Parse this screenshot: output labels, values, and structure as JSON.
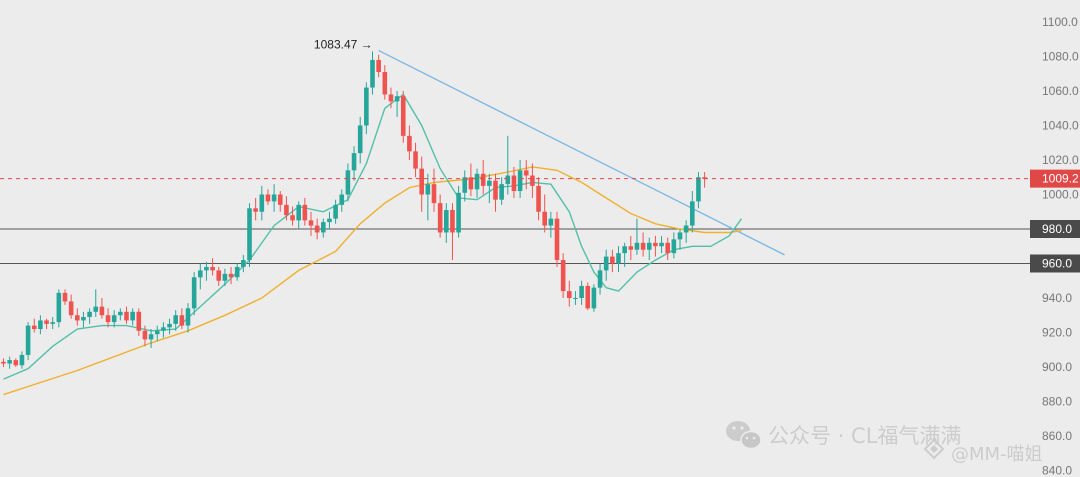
{
  "chart_data": {
    "type": "candlestick",
    "title": "",
    "xlabel": "",
    "ylabel": "",
    "ylim": [
      840,
      1100
    ],
    "y_ticks": [
      {
        "value": 1100,
        "label": "1100.0"
      },
      {
        "value": 1080,
        "label": "1080.0"
      },
      {
        "value": 1060,
        "label": "1060.0"
      },
      {
        "value": 1040,
        "label": "1040.0"
      },
      {
        "value": 1020,
        "label": "1020.0"
      },
      {
        "value": 1000,
        "label": "1000.0"
      },
      {
        "value": 980,
        "label": "980.0"
      },
      {
        "value": 960,
        "label": "960.0"
      },
      {
        "value": 940,
        "label": "940.0"
      },
      {
        "value": 920,
        "label": "920.0"
      },
      {
        "value": 900,
        "label": "900.0"
      },
      {
        "value": 880,
        "label": "880.0"
      },
      {
        "value": 860,
        "label": "860.0"
      },
      {
        "value": 840,
        "label": "840.0"
      }
    ],
    "grid": false,
    "colors": {
      "up": "#26a69a",
      "down": "#ef5350",
      "ma_fast": "#52c0a8",
      "ma_slow": "#efb12f",
      "trendline": "#78b6e4",
      "price_line": "#e04848",
      "level_line": "#555555"
    },
    "candles": [
      [
        903,
        905,
        900,
        902
      ],
      [
        902,
        906,
        899,
        904
      ],
      [
        904,
        905,
        900,
        901
      ],
      [
        901,
        909,
        899,
        907
      ],
      [
        907,
        926,
        904,
        924
      ],
      [
        924,
        928,
        920,
        922
      ],
      [
        922,
        930,
        919,
        927
      ],
      [
        927,
        928,
        922,
        925
      ],
      [
        925,
        929,
        922,
        926
      ],
      [
        926,
        945,
        923,
        943
      ],
      [
        943,
        945,
        936,
        938
      ],
      [
        938,
        942,
        928,
        930
      ],
      [
        930,
        934,
        924,
        927
      ],
      [
        927,
        932,
        923,
        929
      ],
      [
        929,
        934,
        925,
        932
      ],
      [
        932,
        945,
        929,
        935
      ],
      [
        935,
        940,
        928,
        930
      ],
      [
        930,
        934,
        923,
        926
      ],
      [
        926,
        933,
        923,
        930
      ],
      [
        930,
        934,
        927,
        932
      ],
      [
        932,
        935,
        925,
        927
      ],
      [
        927,
        934,
        924,
        932
      ],
      [
        932,
        934,
        918,
        921
      ],
      [
        921,
        924,
        912,
        916
      ],
      [
        916,
        922,
        911,
        919
      ],
      [
        919,
        924,
        915,
        921
      ],
      [
        921,
        926,
        917,
        923
      ],
      [
        923,
        928,
        919,
        925
      ],
      [
        925,
        933,
        921,
        930
      ],
      [
        930,
        934,
        922,
        924
      ],
      [
        924,
        937,
        920,
        934
      ],
      [
        934,
        955,
        930,
        952
      ],
      [
        952,
        960,
        945,
        956
      ],
      [
        956,
        961,
        950,
        958
      ],
      [
        958,
        963,
        953,
        956
      ],
      [
        956,
        958,
        947,
        950
      ],
      [
        950,
        957,
        947,
        954
      ],
      [
        954,
        958,
        948,
        952
      ],
      [
        952,
        960,
        950,
        958
      ],
      [
        958,
        965,
        955,
        962
      ],
      [
        962,
        995,
        958,
        992
      ],
      [
        992,
        998,
        985,
        990
      ],
      [
        990,
        1005,
        985,
        1000
      ],
      [
        1000,
        1003,
        994,
        996
      ],
      [
        996,
        1006,
        990,
        1000
      ],
      [
        1000,
        1002,
        990,
        994
      ],
      [
        994,
        999,
        985,
        988
      ],
      [
        988,
        993,
        982,
        985
      ],
      [
        985,
        996,
        980,
        994
      ],
      [
        994,
        998,
        982,
        985
      ],
      [
        985,
        990,
        976,
        982
      ],
      [
        982,
        986,
        974,
        978
      ],
      [
        978,
        986,
        975,
        984
      ],
      [
        984,
        990,
        980,
        986
      ],
      [
        986,
        997,
        983,
        994
      ],
      [
        994,
        1003,
        990,
        1000
      ],
      [
        1000,
        1018,
        996,
        1014
      ],
      [
        1014,
        1028,
        1008,
        1024
      ],
      [
        1024,
        1045,
        1018,
        1040
      ],
      [
        1040,
        1065,
        1035,
        1062
      ],
      [
        1062,
        1083,
        1058,
        1078
      ],
      [
        1078,
        1081,
        1068,
        1071
      ],
      [
        1071,
        1075,
        1055,
        1058
      ],
      [
        1058,
        1062,
        1050,
        1054
      ],
      [
        1054,
        1060,
        1045,
        1057
      ],
      [
        1057,
        1060,
        1030,
        1034
      ],
      [
        1034,
        1040,
        1020,
        1025
      ],
      [
        1025,
        1030,
        1010,
        1015
      ],
      [
        1015,
        1022,
        990,
        1000
      ],
      [
        1000,
        1012,
        985,
        1006
      ],
      [
        1006,
        1015,
        990,
        995
      ],
      [
        995,
        1000,
        975,
        978
      ],
      [
        978,
        995,
        972,
        991
      ],
      [
        991,
        995,
        962,
        978
      ],
      [
        978,
        1005,
        975,
        1001
      ],
      [
        1001,
        1014,
        996,
        1010
      ],
      [
        1010,
        1018,
        999,
        1003
      ],
      [
        1003,
        1015,
        998,
        1012
      ],
      [
        1012,
        1020,
        1000,
        1005
      ],
      [
        1005,
        1012,
        995,
        1008
      ],
      [
        1008,
        1012,
        990,
        997
      ],
      [
        997,
        1010,
        994,
        1006
      ],
      [
        1006,
        1034,
        1000,
        1011
      ],
      [
        1011,
        1016,
        998,
        1002
      ],
      [
        1002,
        1020,
        998,
        1014
      ],
      [
        1014,
        1020,
        1003,
        1011
      ],
      [
        1011,
        1018,
        998,
        1005
      ],
      [
        1005,
        1010,
        985,
        990
      ],
      [
        990,
        1000,
        978,
        982
      ],
      [
        982,
        990,
        975,
        986
      ],
      [
        986,
        990,
        958,
        962
      ],
      [
        962,
        966,
        940,
        944
      ],
      [
        944,
        950,
        935,
        940
      ],
      [
        940,
        944,
        936,
        940
      ],
      [
        940,
        950,
        936,
        947
      ],
      [
        947,
        949,
        933,
        934
      ],
      [
        934,
        948,
        932,
        946
      ],
      [
        946,
        960,
        942,
        956
      ],
      [
        956,
        968,
        950,
        964
      ],
      [
        964,
        968,
        955,
        960
      ],
      [
        960,
        970,
        955,
        966
      ],
      [
        966,
        972,
        958,
        970
      ],
      [
        970,
        976,
        962,
        968
      ],
      [
        968,
        986,
        965,
        972
      ],
      [
        972,
        978,
        964,
        968
      ],
      [
        968,
        975,
        962,
        972
      ],
      [
        972,
        976,
        964,
        970
      ],
      [
        970,
        976,
        966,
        972
      ],
      [
        972,
        975,
        962,
        966
      ],
      [
        966,
        978,
        963,
        974
      ],
      [
        974,
        980,
        968,
        978
      ],
      [
        978,
        985,
        972,
        982
      ],
      [
        982,
        1002,
        978,
        996
      ],
      [
        996,
        1013,
        992,
        1010
      ],
      [
        1010,
        1013,
        1004,
        1009
      ]
    ],
    "ma_fast": [
      [
        0,
        893
      ],
      [
        4,
        899
      ],
      [
        8,
        912
      ],
      [
        12,
        922
      ],
      [
        16,
        924
      ],
      [
        20,
        924
      ],
      [
        24,
        921
      ],
      [
        28,
        922
      ],
      [
        32,
        935
      ],
      [
        36,
        948
      ],
      [
        40,
        962
      ],
      [
        44,
        982
      ],
      [
        48,
        993
      ],
      [
        52,
        990
      ],
      [
        56,
        997
      ],
      [
        59,
        1018
      ],
      [
        62,
        1050
      ],
      [
        65,
        1058
      ],
      [
        68,
        1040
      ],
      [
        71,
        1015
      ],
      [
        74,
        998
      ],
      [
        77,
        997
      ],
      [
        80,
        1004
      ],
      [
        83,
        1005
      ],
      [
        86,
        1007
      ],
      [
        89,
        1006
      ],
      [
        92,
        990
      ],
      [
        94,
        970
      ],
      [
        96,
        955
      ],
      [
        98,
        946
      ],
      [
        100,
        944
      ],
      [
        103,
        955
      ],
      [
        106,
        962
      ],
      [
        109,
        968
      ],
      [
        112,
        970
      ],
      [
        115,
        970
      ],
      [
        118,
        976
      ],
      [
        120,
        986
      ]
    ],
    "ma_slow": [
      [
        0,
        884
      ],
      [
        6,
        891
      ],
      [
        12,
        898
      ],
      [
        18,
        906
      ],
      [
        24,
        914
      ],
      [
        30,
        921
      ],
      [
        36,
        930
      ],
      [
        42,
        940
      ],
      [
        48,
        956
      ],
      [
        54,
        967
      ],
      [
        58,
        983
      ],
      [
        62,
        995
      ],
      [
        66,
        1004
      ],
      [
        70,
        1007
      ],
      [
        76,
        1009
      ],
      [
        82,
        1013
      ],
      [
        86,
        1016
      ],
      [
        90,
        1014
      ],
      [
        94,
        1007
      ],
      [
        98,
        998
      ],
      [
        102,
        989
      ],
      [
        106,
        983
      ],
      [
        110,
        980
      ],
      [
        114,
        978
      ],
      [
        118,
        978
      ],
      [
        120,
        979
      ]
    ],
    "trendline": [
      [
        61,
        1083.47
      ],
      [
        127,
        965
      ]
    ],
    "levels": [
      {
        "value": 980,
        "label": "980.0"
      },
      {
        "value": 960,
        "label": "960.0"
      }
    ],
    "current_price": {
      "value": 1009.2,
      "label": "1009.2"
    },
    "annotation": {
      "label": "1083.47 →",
      "value": 1083.47,
      "candle_index": 61
    }
  },
  "watermark": {
    "line1": "公众号 · CL福气满满",
    "line2": "@MM-喵姐"
  }
}
